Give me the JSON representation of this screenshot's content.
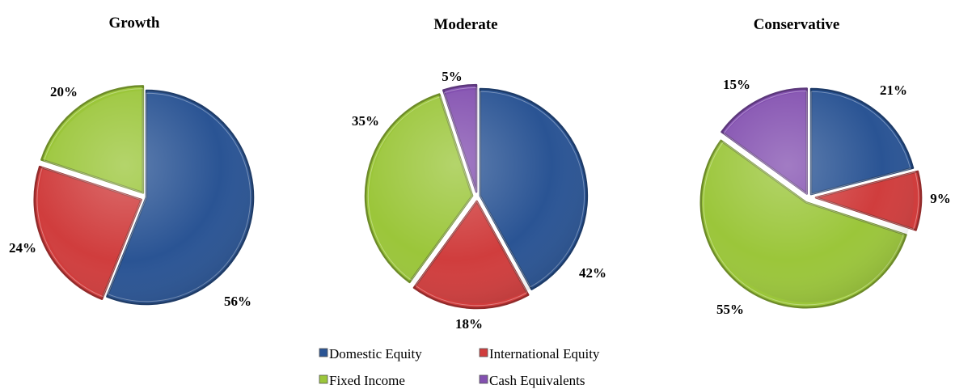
{
  "colors": {
    "Domestic Equity": "#2a5494",
    "International Equity": "#d03d3d",
    "Fixed Income": "#9bc63a",
    "Cash Equivalents": "#8350b0"
  },
  "chart_data": [
    {
      "type": "pie",
      "title": "Growth",
      "slices": [
        {
          "label": "Domestic Equity",
          "value": 56,
          "text": "56%"
        },
        {
          "label": "International Equity",
          "value": 24,
          "text": "24%"
        },
        {
          "label": "Fixed Income",
          "value": 20,
          "text": "20%"
        }
      ]
    },
    {
      "type": "pie",
      "title": "Moderate",
      "slices": [
        {
          "label": "Domestic Equity",
          "value": 42,
          "text": "42%"
        },
        {
          "label": "International Equity",
          "value": 18,
          "text": "18%"
        },
        {
          "label": "Fixed Income",
          "value": 35,
          "text": "35%"
        },
        {
          "label": "Cash Equivalents",
          "value": 5,
          "text": "5%"
        }
      ]
    },
    {
      "type": "pie",
      "title": "Conservative",
      "slices": [
        {
          "label": "Domestic Equity",
          "value": 21,
          "text": "21%"
        },
        {
          "label": "International Equity",
          "value": 9,
          "text": "9%"
        },
        {
          "label": "Fixed Income",
          "value": 55,
          "text": "55%"
        },
        {
          "label": "Cash Equivalents",
          "value": 15,
          "text": "15%"
        }
      ]
    }
  ],
  "legend": {
    "placement": "bottom-center",
    "entries": [
      "Domestic Equity",
      "International Equity",
      "Fixed Income",
      "Cash Equivalents"
    ]
  }
}
